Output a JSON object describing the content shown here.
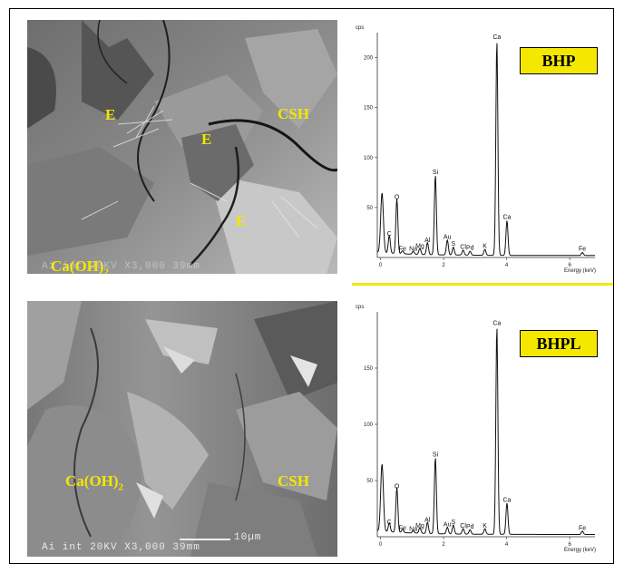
{
  "panels": [
    {
      "id": "top",
      "badge": "BHP",
      "sem_labels": [
        "E",
        "E",
        "E",
        "CSH",
        "Ca(OH)2"
      ],
      "sem_footer": "Ai int 20KV X3,000 39mm",
      "chart_data": {
        "type": "line",
        "ylabel": "cps",
        "xlabel": "Energy (keV)",
        "y_ticks": [
          50,
          100,
          150,
          200
        ],
        "x_ticks": [
          0,
          2,
          4,
          6
        ],
        "xlim": [
          -0.1,
          6.8
        ],
        "ylim": [
          0,
          225
        ],
        "peaks": [
          {
            "label": "C",
            "x": 0.28,
            "y": 18
          },
          {
            "label": "O",
            "x": 0.52,
            "y": 55
          },
          {
            "label": "Fe",
            "x": 0.7,
            "y": 3
          },
          {
            "label": "Na",
            "x": 1.04,
            "y": 3
          },
          {
            "label": "Mg",
            "x": 1.25,
            "y": 6
          },
          {
            "label": "Al",
            "x": 1.49,
            "y": 12
          },
          {
            "label": "Si",
            "x": 1.74,
            "y": 80
          },
          {
            "label": "Au",
            "x": 2.12,
            "y": 15
          },
          {
            "label": "S",
            "x": 2.31,
            "y": 8
          },
          {
            "label": "Cl",
            "x": 2.62,
            "y": 5
          },
          {
            "label": "Pd",
            "x": 2.84,
            "y": 4
          },
          {
            "label": "K",
            "x": 3.31,
            "y": 6
          },
          {
            "label": "Ca",
            "x": 3.69,
            "y": 215
          },
          {
            "label": "Ca",
            "x": 4.01,
            "y": 35
          },
          {
            "label": "Fe",
            "x": 6.4,
            "y": 3
          }
        ]
      }
    },
    {
      "id": "bottom",
      "badge": "BHPL",
      "sem_labels": [
        "Ca(OH)2",
        "CSH"
      ],
      "sem_footer": "Ai int 20KV X3,000 39mm",
      "scale_bar": "10µm",
      "chart_data": {
        "type": "line",
        "ylabel": "cps",
        "xlabel": "Energy (keV)",
        "y_ticks": [
          50,
          100,
          150
        ],
        "x_ticks": [
          0,
          2,
          4,
          6
        ],
        "xlim": [
          -0.1,
          6.8
        ],
        "ylim": [
          0,
          200
        ],
        "peaks": [
          {
            "label": "C",
            "x": 0.28,
            "y": 8
          },
          {
            "label": "O",
            "x": 0.52,
            "y": 40
          },
          {
            "label": "Fe",
            "x": 0.7,
            "y": 3
          },
          {
            "label": "Na",
            "x": 1.04,
            "y": 2
          },
          {
            "label": "Mg",
            "x": 1.25,
            "y": 5
          },
          {
            "label": "Al",
            "x": 1.49,
            "y": 10
          },
          {
            "label": "Si",
            "x": 1.74,
            "y": 68
          },
          {
            "label": "S",
            "x": 2.31,
            "y": 8
          },
          {
            "label": "Au",
            "x": 2.12,
            "y": 6
          },
          {
            "label": "Cl",
            "x": 2.62,
            "y": 5
          },
          {
            "label": "Pd",
            "x": 2.84,
            "y": 4
          },
          {
            "label": "K",
            "x": 3.31,
            "y": 5
          },
          {
            "label": "Ca",
            "x": 3.69,
            "y": 185
          },
          {
            "label": "Ca",
            "x": 4.01,
            "y": 28
          },
          {
            "label": "Fe",
            "x": 6.4,
            "y": 3
          },
          {
            "label": "Fe",
            "x": 7.05,
            "y": 2
          }
        ]
      }
    }
  ],
  "colors": {
    "badge": "#f5e800",
    "sem_label": "#f3e600",
    "divider": "#f5e800"
  }
}
